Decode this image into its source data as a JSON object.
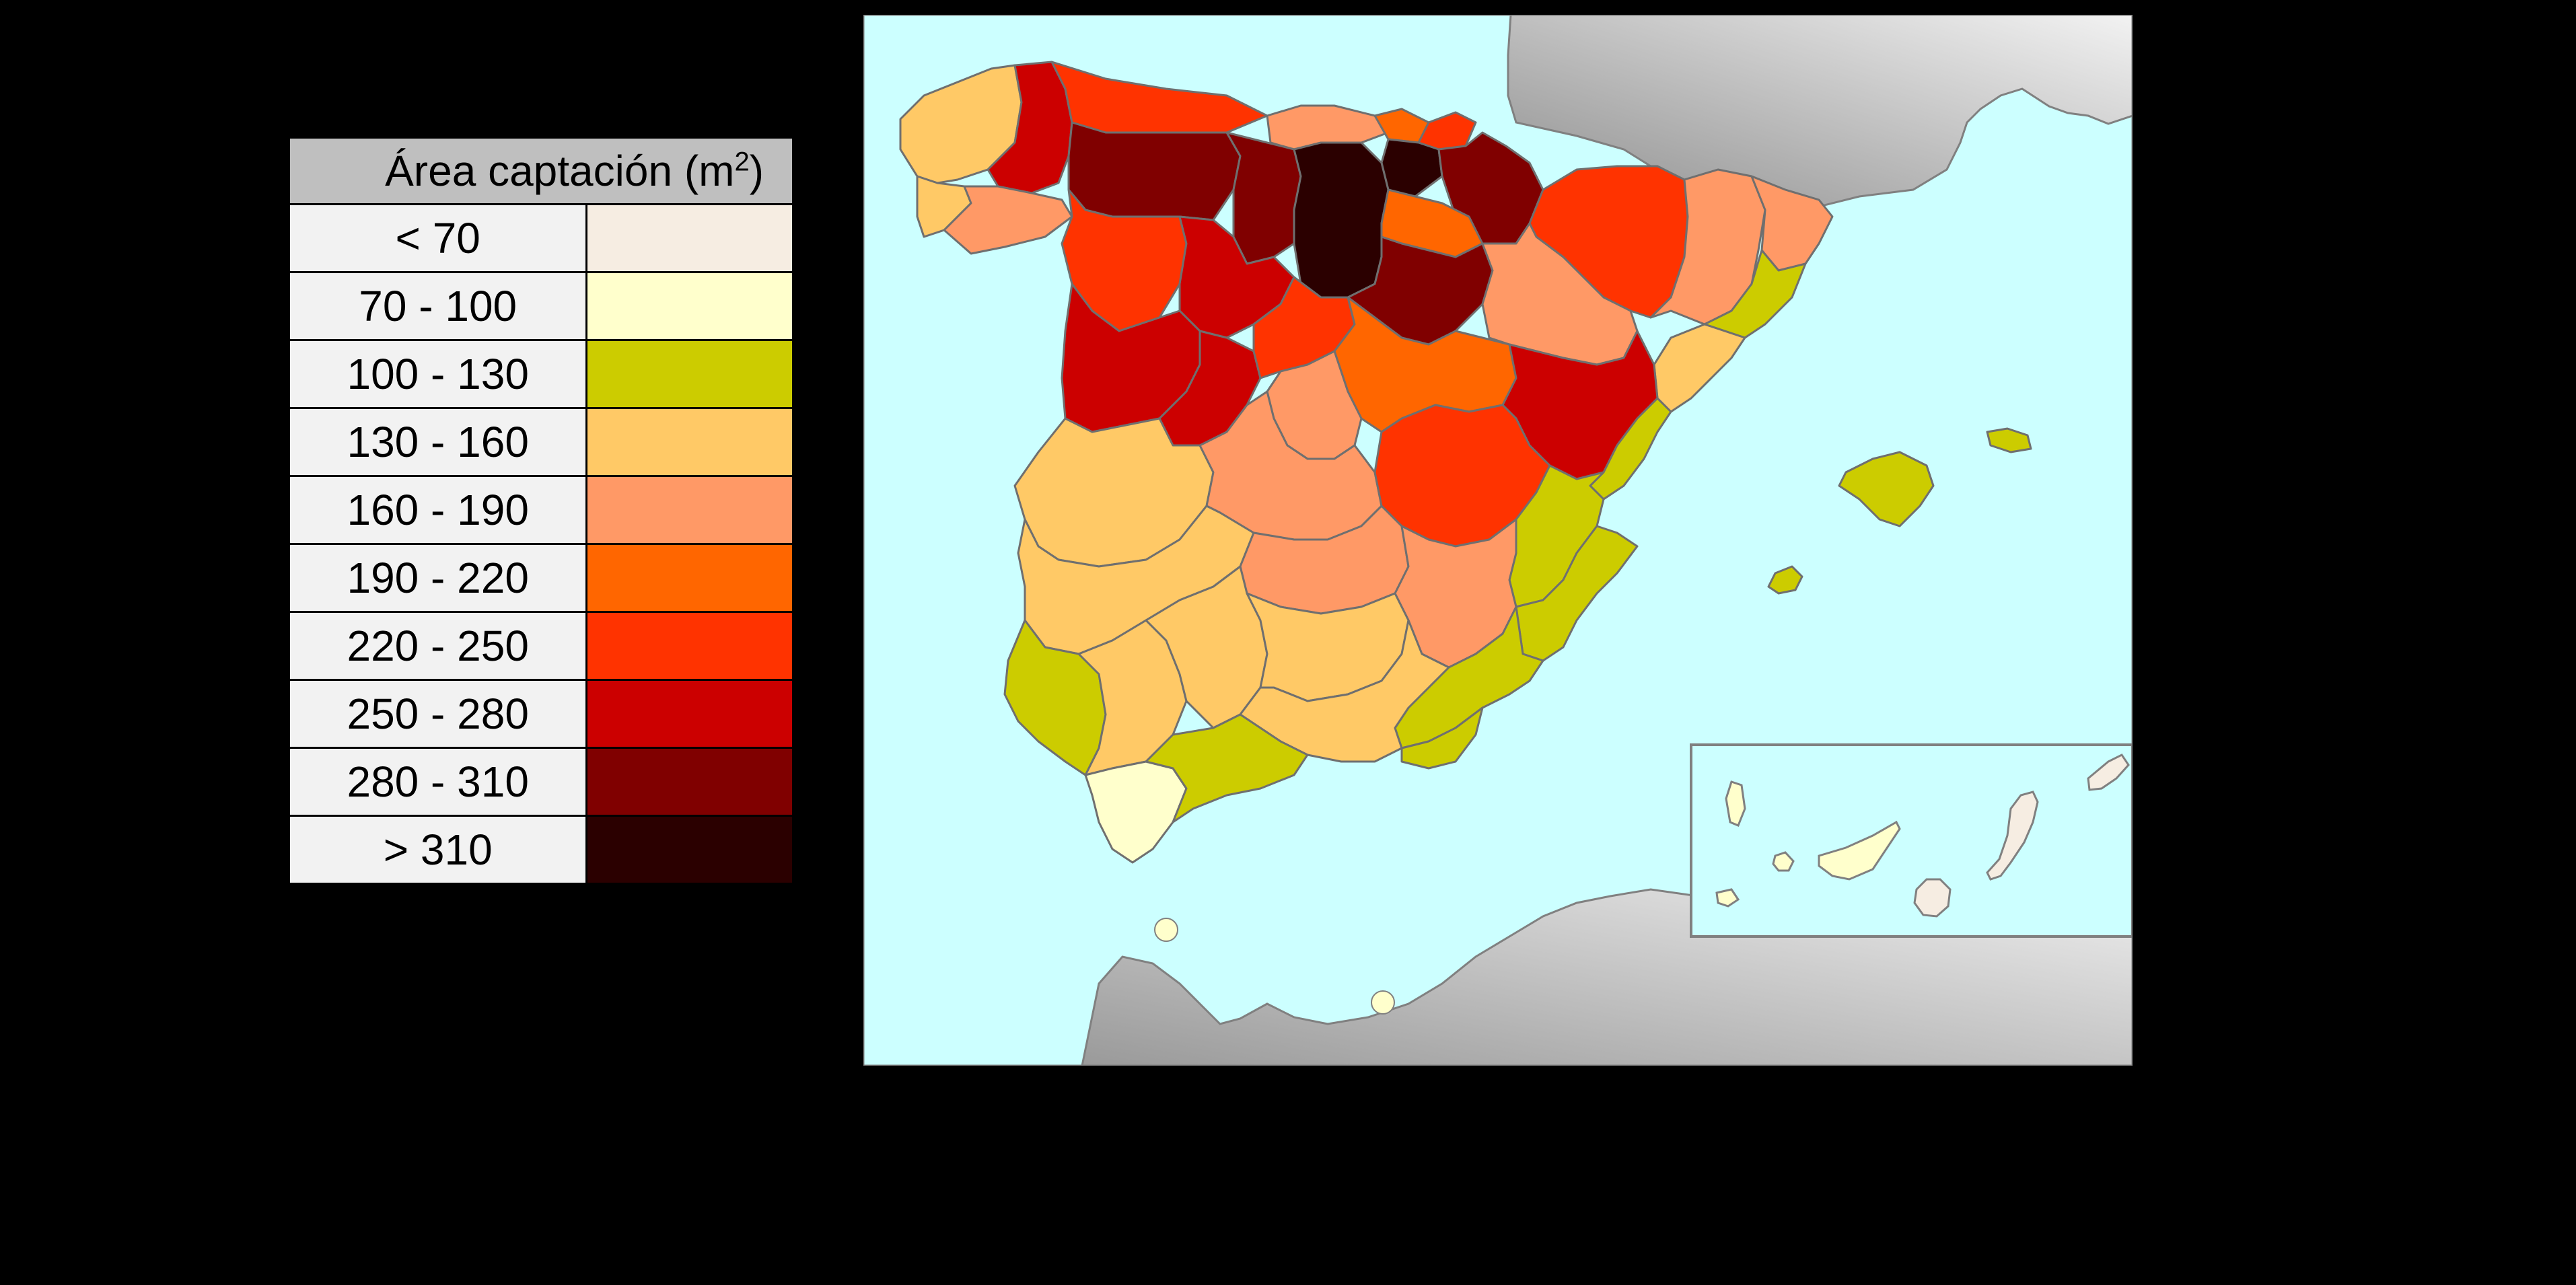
{
  "legend": {
    "title": "Área captación (m",
    "title_sup": "2",
    "title_close": ")",
    "classes": [
      {
        "label": "< 70",
        "color": "#f6ede2"
      },
      {
        "label": "70 - 100",
        "color": "#ffffcc"
      },
      {
        "label": "100 - 130",
        "color": "#cccc00"
      },
      {
        "label": "130 - 160",
        "color": "#ffc966"
      },
      {
        "label": "160 - 190",
        "color": "#ff9966"
      },
      {
        "label": "190 - 220",
        "color": "#ff6600"
      },
      {
        "label": "220 - 250",
        "color": "#ff3300"
      },
      {
        "label": "250 - 280",
        "color": "#cc0000"
      },
      {
        "label": "280 - 310",
        "color": "#800000"
      },
      {
        "label": "> 310",
        "color": "#2b0000"
      }
    ]
  },
  "map": {
    "sea_color": "#ccffff",
    "land_outside_color": "#b3b3b3",
    "border_color": "#808080"
  }
}
